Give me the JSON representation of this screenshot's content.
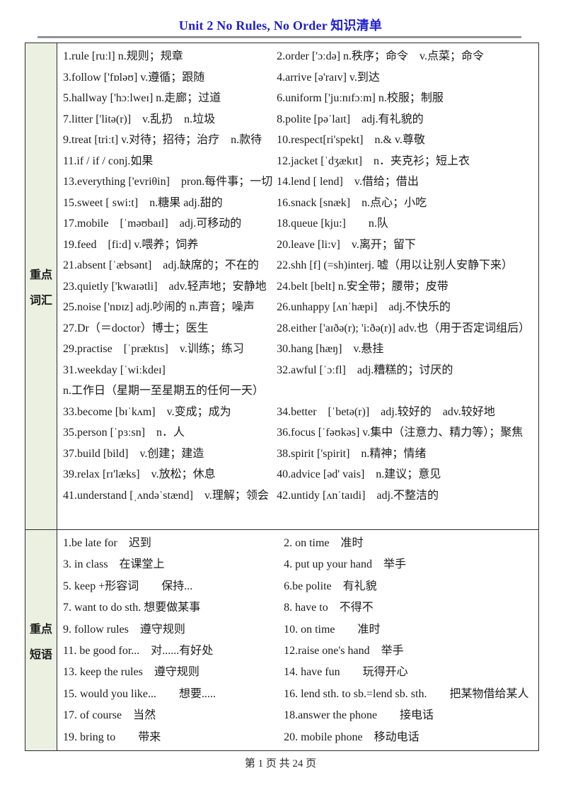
{
  "page": {
    "title": "Unit 2 No Rules, No Order  知识清单",
    "footer": "第 1 页 共 24 页"
  },
  "colors": {
    "title_blue": "#2020cc",
    "label_background": "#ecf0e1",
    "table_border": "#2b2b2b",
    "title_rule_gray": "#8a8a8a"
  },
  "sections": [
    {
      "id": "vocab",
      "label": [
        "重点",
        "词汇"
      ],
      "rows": [
        {
          "left": "1.rule [ruːl] n.规则；规章",
          "right": "2.order ['ɔːdə] n.秩序；命令　v.点菜；命令"
        },
        {
          "left": "3.follow ['fɒləʊ] v.遵循；跟随",
          "right": "4.arrive [ə'raɪv] v.到达"
        },
        {
          "left": "5.hallway ['hɔːlweɪ] n.走廊；过道",
          "right": "6.uniform ['juːnɪfɔːm] n.校服；制服"
        },
        {
          "left": "7.litter ['litə(r)]　v.乱扔　n.垃圾",
          "right": "8.polite [pəˈlaɪt]　adj.有礼貌的"
        },
        {
          "left": "9.treat [triːt] v.对待；招待；治疗　n.款待",
          "right": "10.respect[ri'spekt]　n.& v.尊敬"
        },
        {
          "left": "11.if / if / conj.如果",
          "right": "12.jacket [ˈdʒækɪt]　n．夹克衫；短上衣"
        },
        {
          "left": "13.everything ['evriθin]　pron.每件事；一切",
          "right": "14.lend [ lend]　v.借给；借出"
        },
        {
          "left": "15.sweet [ swi:t]　n.糖果 adj.甜的",
          "right": "16.snack [snæk]　n.点心；小吃"
        },
        {
          "left": "17.mobile　[ˈməʊbaɪl]　adj.可移动的",
          "right": "18.queue [kju:]　　n.队"
        },
        {
          "left": "19.feed　[fi:d] v.喂养；饲养",
          "right": "20.leave [li:v]　v.离开；留下"
        },
        {
          "left": "21.absent [ˈæbsənt]　adj.缺席的；不在的",
          "right": "22.shh [f] (=sh)interj. 嘘（用以让别人安静下来）"
        },
        {
          "left": "23.quietly ['kwaɪətli]　adv.轻声地；安静地",
          "right": "24.belt [belt] n.安全带；腰带；皮带"
        },
        {
          "left": "25.noise ['nɒɪz] adj.吵闹的 n.声音；噪声",
          "right": "26.unhappy [ʌnˈhæpi]　adj.不快乐的"
        },
        {
          "left": "27.Dr（＝doctor）博士；医生",
          "right": "28.either ['aɪðə(r); 'i:ðə(r)] adv.也（用于否定词组后）"
        },
        {
          "left": "29.practise　[ˈpræktɪs]　v.训练；练习",
          "right": "30.hang [hæŋ]　v.悬挂"
        },
        {
          "left": "31.weekday [ˈwiːkdeɪ]",
          "right": "32.awful [ˈɔːfl]　adj.糟糕的；讨厌的"
        },
        {
          "left": "n.工作日（星期一至星期五的任何一天）",
          "right": ""
        },
        {
          "left": "33.become [bɪˈkʌm]　v.变成；成为",
          "right": "34.better　[ˈbetə(r)]　adj.较好的　adv.较好地"
        },
        {
          "left": "35.person [ˈpɜːsn]　n．人",
          "right": "36.focus [ˈfəʊkəs] v.集中（注意力、精力等）；聚焦"
        },
        {
          "left": "37.build [bild]　v.创建；建造",
          "right": "38.spirit ['spirit]　n.精神；情绪"
        },
        {
          "left": "39.relax [rɪ'læks]　v.放松；休息",
          "right": "40.advice [əd' vais]　n.建议；意见"
        },
        {
          "left": "41.understand [ˌʌndəˈstænd]　v.理解；领会",
          "right": "42.untidy [ʌnˈtaɪdi]　adj.不整洁的"
        }
      ]
    },
    {
      "id": "phrases",
      "label": [
        "重点",
        "短语"
      ],
      "rows": [
        {
          "left": "1.be late for　迟到",
          "right": "2. on time　准时"
        },
        {
          "left": "3. in class　在课堂上",
          "right": "4. put up your hand　举手"
        },
        {
          "left": "5. keep +形容词　　保持...",
          "right": "6.be polite　有礼貌"
        },
        {
          "left": "7. want to do sth. 想要做某事",
          "right": "8. have to　不得不"
        },
        {
          "left": "9. follow rules　遵守规则",
          "right": "10. on time　　准时"
        },
        {
          "left": "11. be good for...　对......有好处",
          "right": "12.raise one's hand　举手"
        },
        {
          "left": "13. keep the rules　遵守规则",
          "right": "14. have fun　　玩得开心"
        },
        {
          "left": "15. would you like...　　想要.....",
          "right": "16. lend sth. to sb.=lend sb. sth.　　把某物借给某人"
        },
        {
          "left": "17. of course　当然",
          "right": "18.answer the phone　　接电话"
        },
        {
          "left": "19. bring to　　带来",
          "right": "20. mobile phone　移动电话"
        }
      ]
    }
  ]
}
